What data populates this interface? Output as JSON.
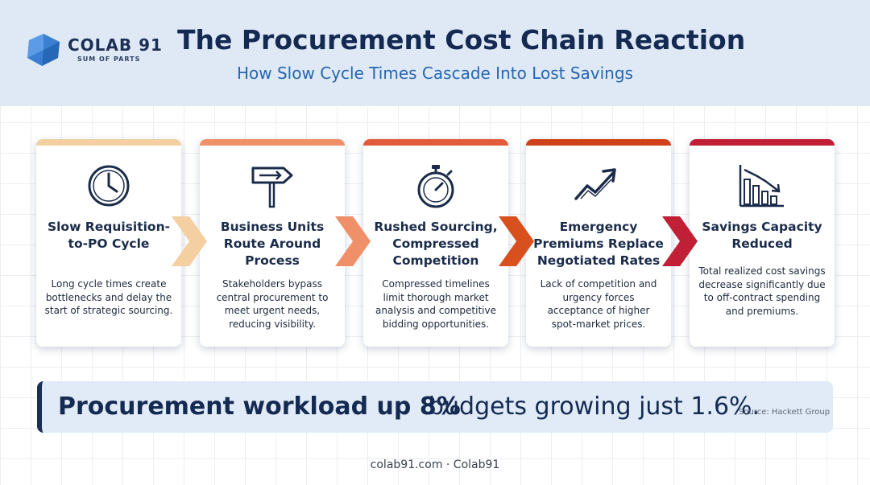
{
  "brand": {
    "name": "COLAB 91",
    "tagline": "SUM OF PARTS"
  },
  "header": {
    "title": "The Procurement Cost Chain Reaction",
    "subtitle": "How Slow Cycle Times Cascade Into Lost Savings"
  },
  "steps": [
    {
      "title": "Slow Requisition-to-PO Cycle",
      "description": "Long cycle times create bottlenecks and delay the start of strategic sourcing.",
      "icon": "clock-icon",
      "color": "#f3cfa2"
    },
    {
      "title": "Business Units Route Around Process",
      "description": "Stakeholders bypass central procurement to meet urgent needs, reducing visibility.",
      "icon": "signpost-icon",
      "color": "#ef9069"
    },
    {
      "title": "Rushed Sourcing, Compressed Competition",
      "description": "Compressed timelines limit thorough market analysis and competitive bidding opportunities.",
      "icon": "stopwatch-icon",
      "color": "#e25b3b"
    },
    {
      "title": "Emergency Premiums Replace Negotiated Rates",
      "description": "Lack of competition and urgency forces acceptance of higher spot-market prices.",
      "icon": "trend-up-icon",
      "color": "#cf4118"
    },
    {
      "title": "Savings Capacity Reduced",
      "description": "Total realized cost savings decrease significantly due to off-contract spending and premiums.",
      "icon": "bar-chart-down-icon",
      "color": "#c11f36"
    }
  ],
  "stat": {
    "highlight": "Procurement workload up 8%",
    "rest": "budgets growing just 1.6%.",
    "source": "Source: Hackett Group"
  },
  "footer": {
    "text": "colab91.com · Colab91"
  },
  "colors": {
    "navy": "#142a52",
    "accent_blue": "#2566b0",
    "header_bg": "#dfe9f6"
  }
}
